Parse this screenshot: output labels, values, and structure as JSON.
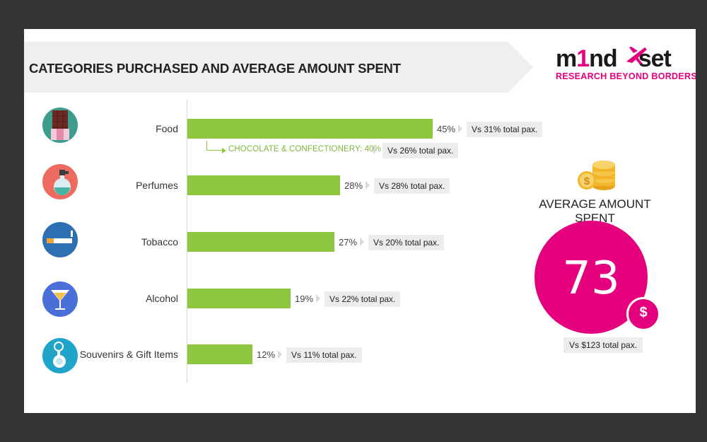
{
  "slide": {
    "title": "CATEGORIES PURCHASED AND AVERAGE AMOUNT SPENT"
  },
  "logo": {
    "word_part1": "m",
    "word_accent": "1",
    "word_part2": "nd",
    "word_part3": "set",
    "tagline": "RESEARCH BEYOND BORDERS"
  },
  "chart_data": {
    "type": "bar",
    "orientation": "horizontal",
    "title": "CATEGORIES PURCHASED AND AVERAGE AMOUNT SPENT",
    "xlim": [
      0,
      100
    ],
    "unit": "%",
    "categories": [
      "Food",
      "Perfumes",
      "Tobacco",
      "Alcohol",
      "Souvenirs & Gift Items"
    ],
    "values": [
      45,
      28,
      27,
      19,
      12
    ],
    "value_labels": [
      "45%",
      "28%",
      "27%",
      "19%",
      "12%"
    ],
    "comparisons": [
      "Vs 31% total pax.",
      "Vs 28% total pax.",
      "Vs 20% total pax.",
      "Vs 22% total pax.",
      "Vs 11% total pax."
    ],
    "icons": [
      "chocolate-icon",
      "perfume-icon",
      "cigarette-icon",
      "cocktail-icon",
      "keychain-icon"
    ],
    "bar_color": "#8dc63f",
    "sub_item": {
      "parent": "Food",
      "label": "CHOCOLATE & CONFECTIONERY: 40%",
      "value": 40,
      "comparison": "Vs 26% total pax."
    }
  },
  "average": {
    "title": "AVERAGE AMOUNT SPENT",
    "value": "73",
    "currency": "$",
    "comparison": "Vs $123 total pax.",
    "color": "#e5007e",
    "icon": "coins-icon"
  }
}
